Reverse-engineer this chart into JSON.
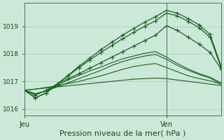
{
  "xlabel": "Pression niveau de la mer( hPa )",
  "bg_color": "#cce8d8",
  "grid_color": "#aaccbb",
  "line_color": "#1a6020",
  "ylim": [
    1015.75,
    1019.85
  ],
  "xlim": [
    0,
    18
  ],
  "ytick_positions": [
    1016,
    1017,
    1018,
    1019
  ],
  "xtick_positions": [
    0,
    13
  ],
  "xtick_labels": [
    "Jeu",
    "Ven"
  ],
  "vline_x": 13,
  "series": [
    [
      1016.68,
      1016.72,
      1016.76,
      1016.8,
      1016.84,
      1016.88,
      1016.92,
      1016.96,
      1017.0,
      1017.04,
      1017.08,
      1017.1,
      1017.12,
      1017.1,
      1017.05,
      1017.0,
      1016.95,
      1016.9,
      1016.85
    ],
    [
      1016.68,
      1016.72,
      1016.78,
      1016.84,
      1016.92,
      1017.0,
      1017.1,
      1017.2,
      1017.32,
      1017.44,
      1017.54,
      1017.6,
      1017.65,
      1017.5,
      1017.35,
      1017.2,
      1017.1,
      1017.02,
      1016.9
    ],
    [
      1016.68,
      1016.55,
      1016.65,
      1016.8,
      1016.95,
      1017.1,
      1017.25,
      1017.4,
      1017.58,
      1017.72,
      1017.83,
      1017.92,
      1017.98,
      1017.8,
      1017.58,
      1017.4,
      1017.25,
      1017.12,
      1016.9
    ],
    [
      1016.68,
      1016.55,
      1016.65,
      1016.85,
      1017.05,
      1017.22,
      1017.38,
      1017.52,
      1017.68,
      1017.82,
      1017.92,
      1018.02,
      1018.08,
      1017.88,
      1017.65,
      1017.45,
      1017.28,
      1017.15,
      1016.95
    ],
    [
      1016.68,
      1016.4,
      1016.58,
      1016.9,
      1017.2,
      1017.5,
      1017.78,
      1018.05,
      1018.3,
      1018.55,
      1018.78,
      1019.0,
      1019.2,
      1019.48,
      1019.38,
      1019.18,
      1018.95,
      1018.6,
      1017.5
    ],
    [
      1016.68,
      1016.4,
      1016.58,
      1016.9,
      1017.22,
      1017.55,
      1017.85,
      1018.15,
      1018.42,
      1018.68,
      1018.92,
      1019.15,
      1019.35,
      1019.58,
      1019.48,
      1019.28,
      1019.05,
      1018.7,
      1017.55
    ],
    [
      1016.68,
      1016.5,
      1016.68,
      1016.9,
      1017.1,
      1017.28,
      1017.48,
      1017.68,
      1017.88,
      1018.08,
      1018.28,
      1018.48,
      1018.68,
      1019.02,
      1018.85,
      1018.6,
      1018.35,
      1018.05,
      1017.45
    ]
  ],
  "markers": [
    null,
    null,
    null,
    null,
    "+",
    "+",
    "+"
  ],
  "markersizes": [
    0,
    0,
    0,
    0,
    4,
    4,
    4
  ],
  "linewidths": [
    0.8,
    0.8,
    0.8,
    0.8,
    0.9,
    0.9,
    0.9
  ]
}
